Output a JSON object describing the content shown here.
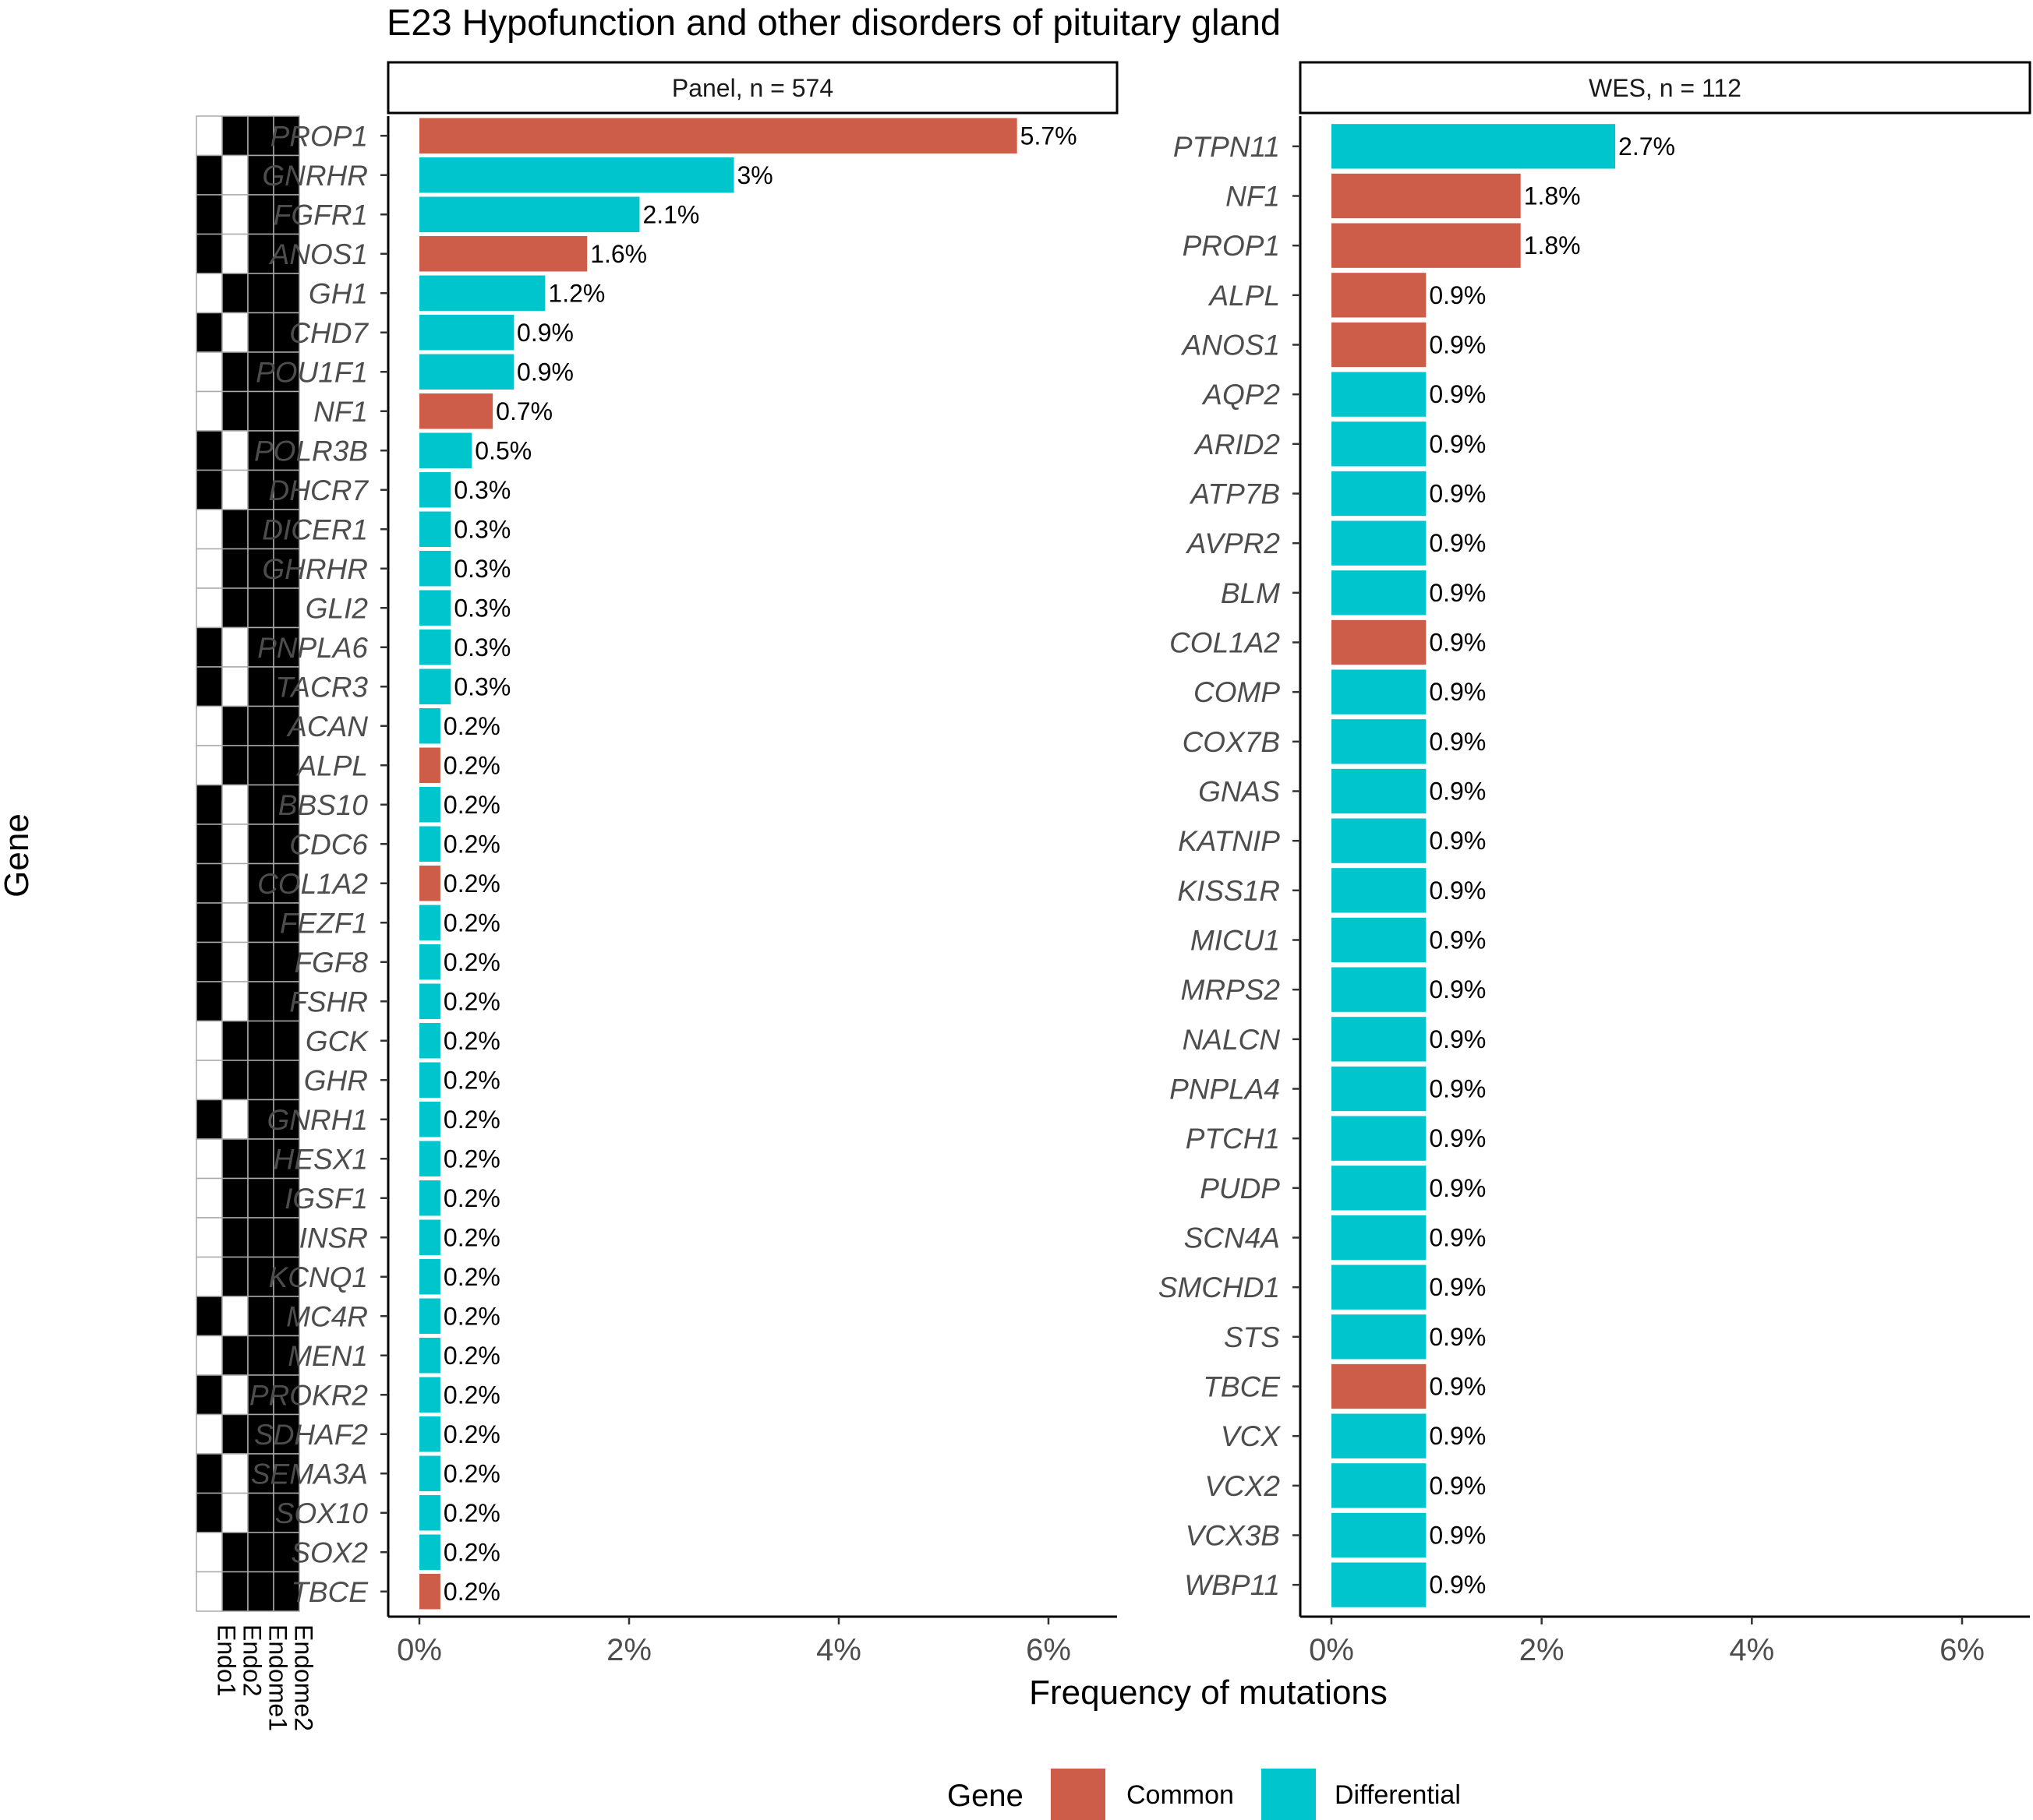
{
  "chart_data": {
    "type": "bar",
    "orientation": "horizontal",
    "title": "E23 Hypofunction and other disorders of pituitary gland",
    "xlabel": "Frequency of mutations",
    "ylabel": "Gene",
    "xlim": [
      0,
      6.5
    ],
    "xticks": [
      0,
      2,
      4,
      6
    ],
    "xtick_labels": [
      "0%",
      "2%",
      "4%",
      "6%"
    ],
    "colors": {
      "Common": "#CD5C48",
      "Differential": "#00C5CD"
    },
    "legend": {
      "title": "Gene",
      "position": "bottom",
      "entries": [
        "Common",
        "Differential"
      ]
    },
    "panels": [
      {
        "strip": "Panel, n = 574",
        "genes": [
          "PROP1",
          "GNRHR",
          "FGFR1",
          "ANOS1",
          "GH1",
          "CHD7",
          "POU1F1",
          "NF1",
          "POLR3B",
          "DHCR7",
          "DICER1",
          "GHRHR",
          "GLI2",
          "PNPLA6",
          "TACR3",
          "ACAN",
          "ALPL",
          "BBS10",
          "CDC6",
          "COL1A2",
          "FEZF1",
          "FGF8",
          "FSHR",
          "GCK",
          "GHR",
          "GNRH1",
          "HESX1",
          "IGSF1",
          "INSR",
          "KCNQ1",
          "MC4R",
          "MEN1",
          "PROKR2",
          "SDHAF2",
          "SEMA3A",
          "SOX10",
          "SOX2",
          "TBCE"
        ],
        "values": [
          5.7,
          3.0,
          2.1,
          1.6,
          1.2,
          0.9,
          0.9,
          0.7,
          0.5,
          0.3,
          0.3,
          0.3,
          0.3,
          0.3,
          0.3,
          0.2,
          0.2,
          0.2,
          0.2,
          0.2,
          0.2,
          0.2,
          0.2,
          0.2,
          0.2,
          0.2,
          0.2,
          0.2,
          0.2,
          0.2,
          0.2,
          0.2,
          0.2,
          0.2,
          0.2,
          0.2,
          0.2,
          0.2
        ],
        "labels": [
          "5.7%",
          "3%",
          "2.1%",
          "1.6%",
          "1.2%",
          "0.9%",
          "0.9%",
          "0.7%",
          "0.5%",
          "0.3%",
          "0.3%",
          "0.3%",
          "0.3%",
          "0.3%",
          "0.3%",
          "0.2%",
          "0.2%",
          "0.2%",
          "0.2%",
          "0.2%",
          "0.2%",
          "0.2%",
          "0.2%",
          "0.2%",
          "0.2%",
          "0.2%",
          "0.2%",
          "0.2%",
          "0.2%",
          "0.2%",
          "0.2%",
          "0.2%",
          "0.2%",
          "0.2%",
          "0.2%",
          "0.2%",
          "0.2%",
          "0.2%"
        ],
        "category": [
          "Common",
          "Differential",
          "Differential",
          "Common",
          "Differential",
          "Differential",
          "Differential",
          "Common",
          "Differential",
          "Differential",
          "Differential",
          "Differential",
          "Differential",
          "Differential",
          "Differential",
          "Differential",
          "Common",
          "Differential",
          "Differential",
          "Common",
          "Differential",
          "Differential",
          "Differential",
          "Differential",
          "Differential",
          "Differential",
          "Differential",
          "Differential",
          "Differential",
          "Differential",
          "Differential",
          "Differential",
          "Differential",
          "Differential",
          "Differential",
          "Differential",
          "Differential",
          "Common"
        ]
      },
      {
        "strip": "WES, n = 112",
        "genes": [
          "PTPN11",
          "NF1",
          "PROP1",
          "ALPL",
          "ANOS1",
          "AQP2",
          "ARID2",
          "ATP7B",
          "AVPR2",
          "BLM",
          "COL1A2",
          "COMP",
          "COX7B",
          "GNAS",
          "KATNIP",
          "KISS1R",
          "MICU1",
          "MRPS2",
          "NALCN",
          "PNPLA4",
          "PTCH1",
          "PUDP",
          "SCN4A",
          "SMCHD1",
          "STS",
          "TBCE",
          "VCX",
          "VCX2",
          "VCX3B",
          "WBP11"
        ],
        "values": [
          2.7,
          1.8,
          1.8,
          0.9,
          0.9,
          0.9,
          0.9,
          0.9,
          0.9,
          0.9,
          0.9,
          0.9,
          0.9,
          0.9,
          0.9,
          0.9,
          0.9,
          0.9,
          0.9,
          0.9,
          0.9,
          0.9,
          0.9,
          0.9,
          0.9,
          0.9,
          0.9,
          0.9,
          0.9,
          0.9
        ],
        "labels": [
          "2.7%",
          "1.8%",
          "1.8%",
          "0.9%",
          "0.9%",
          "0.9%",
          "0.9%",
          "0.9%",
          "0.9%",
          "0.9%",
          "0.9%",
          "0.9%",
          "0.9%",
          "0.9%",
          "0.9%",
          "0.9%",
          "0.9%",
          "0.9%",
          "0.9%",
          "0.9%",
          "0.9%",
          "0.9%",
          "0.9%",
          "0.9%",
          "0.9%",
          "0.9%",
          "0.9%",
          "0.9%",
          "0.9%",
          "0.9%"
        ],
        "category": [
          "Differential",
          "Common",
          "Common",
          "Common",
          "Common",
          "Differential",
          "Differential",
          "Differential",
          "Differential",
          "Differential",
          "Common",
          "Differential",
          "Differential",
          "Differential",
          "Differential",
          "Differential",
          "Differential",
          "Differential",
          "Differential",
          "Differential",
          "Differential",
          "Differential",
          "Differential",
          "Differential",
          "Differential",
          "Common",
          "Differential",
          "Differential",
          "Differential",
          "Differential"
        ]
      }
    ],
    "heatmap": {
      "columns": [
        "Endo1",
        "Endo2",
        "Endome1",
        "Endome2"
      ],
      "black_columns_per_row": [
        [
          1,
          2,
          3
        ],
        [
          0,
          2,
          3
        ],
        [
          0,
          2,
          3
        ],
        [
          0,
          2,
          3
        ],
        [
          1,
          2,
          3
        ],
        [
          0,
          2,
          3
        ],
        [
          1,
          2,
          3
        ],
        [
          1,
          2,
          3
        ],
        [
          0,
          2,
          3
        ],
        [
          0,
          2,
          3
        ],
        [
          1,
          2,
          3
        ],
        [
          1,
          2,
          3
        ],
        [
          1,
          2,
          3
        ],
        [
          0,
          2,
          3
        ],
        [
          0,
          2,
          3
        ],
        [
          1,
          2,
          3
        ],
        [
          1,
          2,
          3
        ],
        [
          0,
          2,
          3
        ],
        [
          0,
          2,
          3
        ],
        [
          0,
          2,
          3
        ],
        [
          0,
          2,
          3
        ],
        [
          0,
          2,
          3
        ],
        [
          0,
          2,
          3
        ],
        [
          1,
          2,
          3
        ],
        [
          1,
          2,
          3
        ],
        [
          0,
          2,
          3
        ],
        [
          1,
          2,
          3
        ],
        [
          1,
          2,
          3
        ],
        [
          1,
          2,
          3
        ],
        [
          1,
          2,
          3
        ],
        [
          0,
          2,
          3
        ],
        [
          1,
          2,
          3
        ],
        [
          0,
          2,
          3
        ],
        [
          1,
          2,
          3
        ],
        [
          0,
          2,
          3
        ],
        [
          0,
          2,
          3
        ],
        [
          1,
          2,
          3
        ],
        [
          1,
          2,
          3
        ]
      ]
    }
  }
}
